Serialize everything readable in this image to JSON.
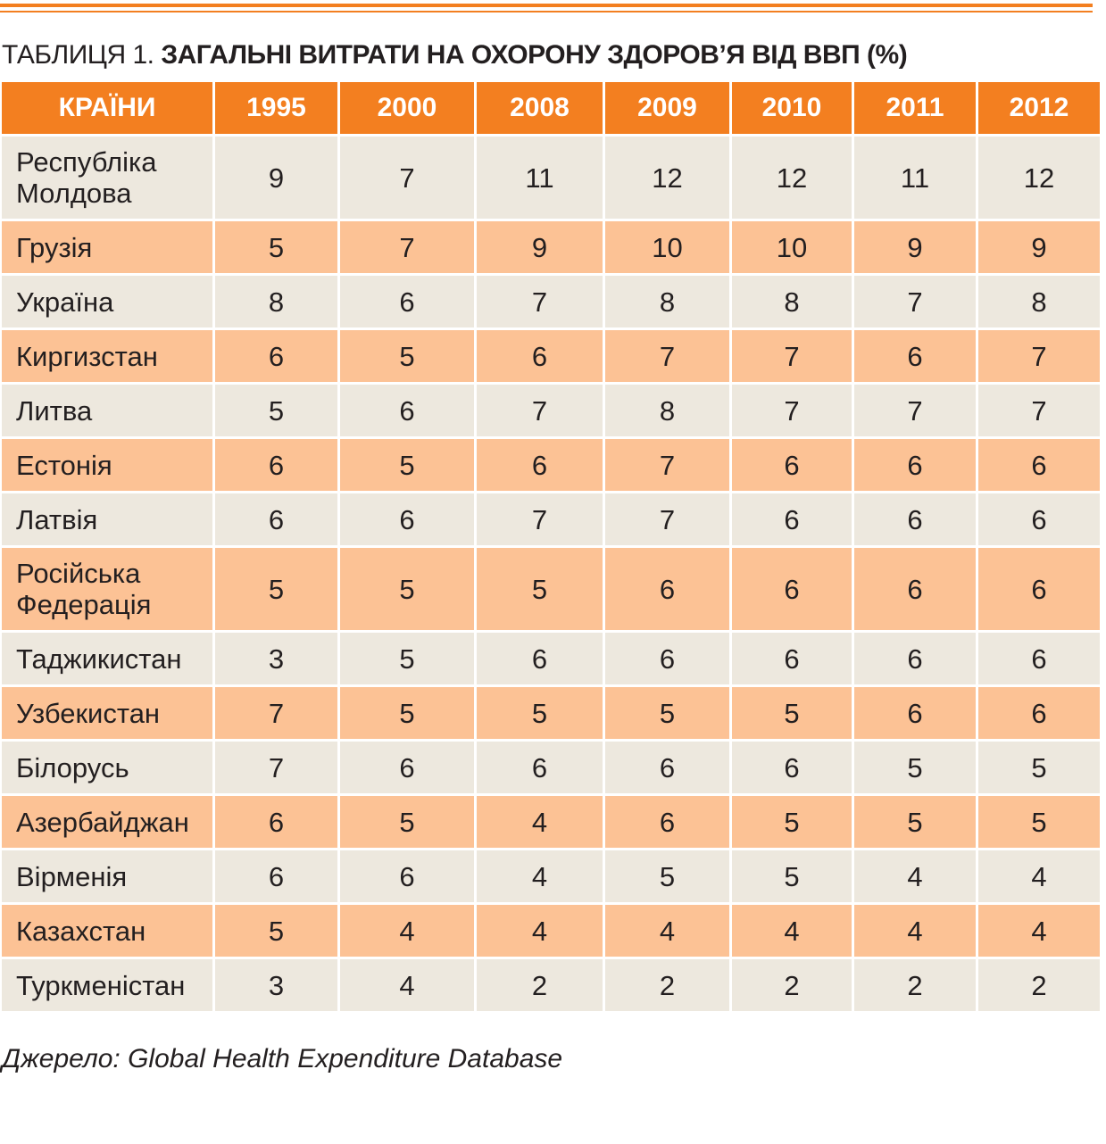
{
  "title": {
    "prefix": "ТАБЛИЦЯ 1.",
    "main": "ЗАГАЛЬНІ ВИТРАТИ НА ОХОРОНУ ЗДОРОВ’Я ВІД ВВП (%)"
  },
  "table": {
    "headers": [
      "КРАЇНИ",
      "1995",
      "2000",
      "2008",
      "2009",
      "2010",
      "2011",
      "2012"
    ],
    "rows": [
      {
        "country": "Республіка Молдова",
        "values": [
          "9",
          "7",
          "11",
          "12",
          "12",
          "11",
          "12"
        ]
      },
      {
        "country": "Грузія",
        "values": [
          "5",
          "7",
          "9",
          "10",
          "10",
          "9",
          "9"
        ]
      },
      {
        "country": "Україна",
        "values": [
          "8",
          "6",
          "7",
          "8",
          "8",
          "7",
          "8"
        ]
      },
      {
        "country": "Киргизстан",
        "values": [
          "6",
          "5",
          "6",
          "7",
          "7",
          "6",
          "7"
        ]
      },
      {
        "country": "Литва",
        "values": [
          "5",
          "6",
          "7",
          "8",
          "7",
          "7",
          "7"
        ]
      },
      {
        "country": "Естонія",
        "values": [
          "6",
          "5",
          "6",
          "7",
          "6",
          "6",
          "6"
        ]
      },
      {
        "country": "Латвія",
        "values": [
          "6",
          "6",
          "7",
          "7",
          "6",
          "6",
          "6"
        ]
      },
      {
        "country": "Російська Федерація",
        "values": [
          "5",
          "5",
          "5",
          "6",
          "6",
          "6",
          "6"
        ]
      },
      {
        "country": "Таджикистан",
        "values": [
          "3",
          "5",
          "6",
          "6",
          "6",
          "6",
          "6"
        ]
      },
      {
        "country": "Узбекистан",
        "values": [
          "7",
          "5",
          "5",
          "5",
          "5",
          "6",
          "6"
        ]
      },
      {
        "country": "Білорусь",
        "values": [
          "7",
          "6",
          "6",
          "6",
          "6",
          "5",
          "5"
        ]
      },
      {
        "country": "Азербайджан",
        "values": [
          "6",
          "5",
          "4",
          "6",
          "5",
          "5",
          "5"
        ]
      },
      {
        "country": "Вірменія",
        "values": [
          "6",
          "6",
          "4",
          "5",
          "5",
          "4",
          "4"
        ]
      },
      {
        "country": "Казахстан",
        "values": [
          "5",
          "4",
          "4",
          "4",
          "4",
          "4",
          "4"
        ]
      },
      {
        "country": "Туркменістан",
        "values": [
          "3",
          "4",
          "2",
          "2",
          "2",
          "2",
          "2"
        ]
      }
    ]
  },
  "source": "Джерело: Global Health Expenditure Database",
  "colors": {
    "accent": "#f37f20",
    "row_light": "#ede8de",
    "row_orange": "#fcc295"
  }
}
